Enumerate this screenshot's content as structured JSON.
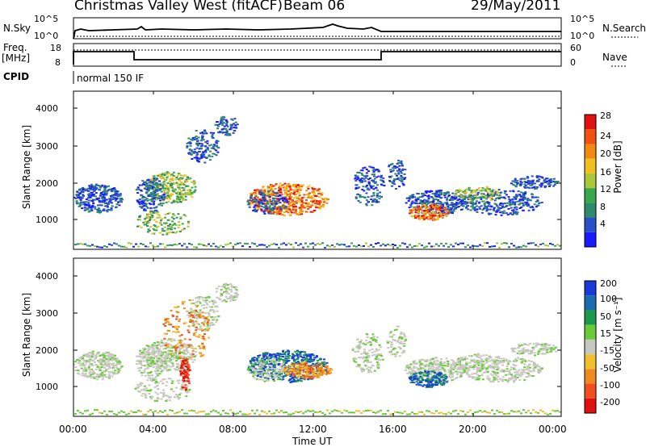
{
  "header": {
    "title": "Christmas Valley West (fitACF)",
    "beam": "Beam 06",
    "date": "29/May/2011"
  },
  "top_panels": {
    "nsky_label": "N.Sky",
    "nsearch_label": "N.Search",
    "nsky_ticks": [
      "10^5",
      "10^0"
    ],
    "freq_label_1": "Freq.",
    "freq_label_2": "[MHz]",
    "freq_ticks": [
      "18",
      "8"
    ],
    "nave_label": "Nave",
    "nave_ticks": [
      "60",
      "0"
    ],
    "cpid_label": "CPID",
    "cpid_value": "normal 150 IF"
  },
  "colors": {
    "power_scale": [
      "#1a1aff",
      "#2a50c8",
      "#2e8a6a",
      "#3aa84a",
      "#a8c83a",
      "#f0c020",
      "#f08a10",
      "#f05010",
      "#e01010"
    ],
    "velocity_scale": [
      "#1a3ad8",
      "#1a6ab0",
      "#1a9a4a",
      "#6acb3a",
      "#c8c8c0",
      "#f0c030",
      "#f08a20",
      "#f05020",
      "#e01010"
    ]
  },
  "chart_data": [
    {
      "type": "heatmap",
      "panel": "power",
      "ylabel": "Slant Range [km]",
      "ylim": [
        180,
        4500
      ],
      "yticks": [
        "1000",
        "2000",
        "3000",
        "4000"
      ],
      "x_ticks": [
        "00:00",
        "04:00",
        "08:00",
        "12:00",
        "16:00",
        "20:00",
        "00:00"
      ],
      "colorbar_label": "Power [dB]",
      "colorbar_ticks": [
        "4",
        "8",
        "12",
        "16",
        "20",
        "24",
        "28"
      ]
    },
    {
      "type": "heatmap",
      "panel": "velocity",
      "ylabel": "Slant Range [km]",
      "ylim": [
        180,
        4500
      ],
      "yticks": [
        "1000",
        "2000",
        "3000",
        "4000"
      ],
      "xlabel": "Time UT",
      "x_ticks": [
        "00:00",
        "04:00",
        "08:00",
        "12:00",
        "16:00",
        "20:00",
        "00:00"
      ],
      "colorbar_label": "Velocity [m s⁻¹]",
      "colorbar_ticks": [
        "200",
        "100",
        "50",
        "15",
        "-15",
        "-50",
        "-100",
        "-200"
      ]
    }
  ]
}
